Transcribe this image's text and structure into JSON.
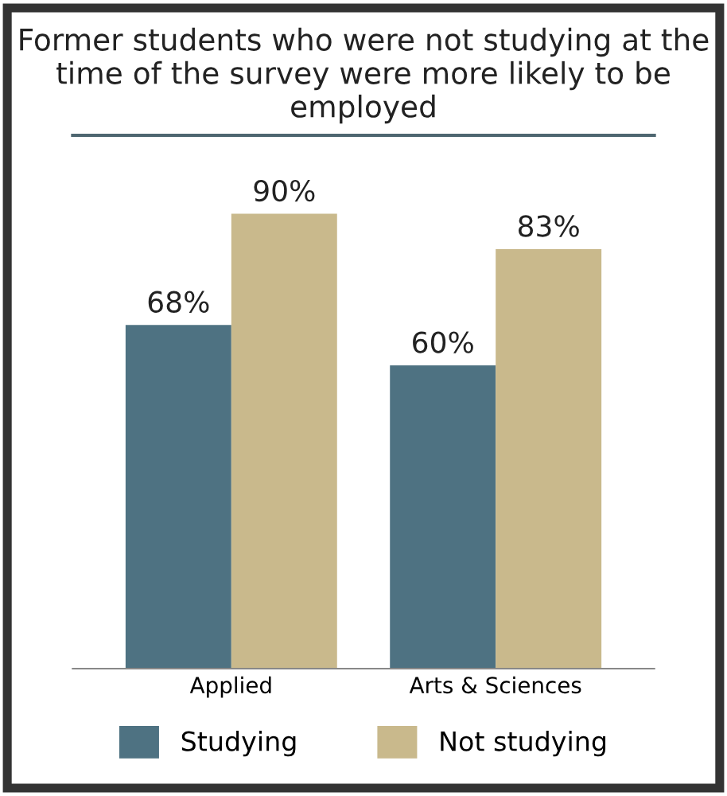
{
  "chart_data": {
    "type": "bar",
    "title": "Former students who were not studying at the time of the survey were more likely to be employed",
    "categories": [
      "Applied",
      "Arts & Sciences"
    ],
    "series": [
      {
        "name": "Studying",
        "color": "#4e7282",
        "values": [
          68,
          60
        ],
        "value_labels": [
          "68%",
          "60%"
        ]
      },
      {
        "name": "Not studying",
        "color": "#c9b98c",
        "values": [
          90,
          83
        ],
        "value_labels": [
          "90%",
          "83%"
        ]
      }
    ],
    "legend": "bottom",
    "grid": false
  }
}
